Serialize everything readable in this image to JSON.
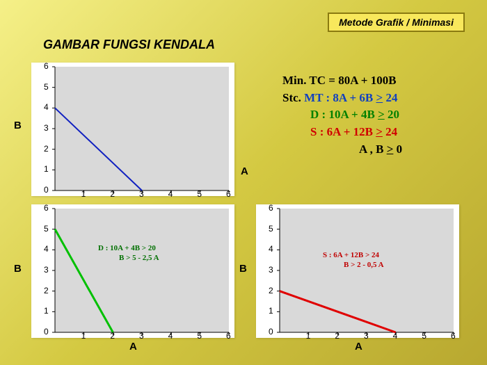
{
  "banner": "Metode Grafik / Minimasi",
  "title": "GAMBAR FUNGSI  KENDALA",
  "formula": {
    "l1": "Min. TC =  80A  +  100B",
    "l2a": "Stc. ",
    "l2b": "MT :  8A  +  6B   ",
    "l2c": ">",
    "l2d": "  24",
    "l3a": "D   :  10A  +  4B  ",
    "l3b": ">",
    "l3c": " 20",
    "l4a": "S   :  6A  +  12B  ",
    "l4b": ">",
    "l4c": " 24",
    "l5a": "A , B   ",
    "l5b": ">",
    "l5c": "   0"
  },
  "chart1": {
    "line_color": "#1020c0",
    "stroke": 2,
    "bg": "#d9d9d9",
    "xlim": [
      0,
      6
    ],
    "ylim": [
      0,
      6
    ],
    "points": [
      [
        0,
        4
      ],
      [
        3,
        0
      ]
    ],
    "xticks": [
      1,
      2,
      3,
      4,
      5,
      6
    ],
    "yticks": [
      0,
      1,
      2,
      3,
      4,
      5,
      6
    ],
    "xlabel": "A",
    "ylabel": "B"
  },
  "chart2": {
    "line_color": "#00c000",
    "stroke": 3,
    "bg": "#d9d9d9",
    "xlim": [
      0,
      6
    ],
    "ylim": [
      0,
      6
    ],
    "points": [
      [
        0,
        5
      ],
      [
        2,
        0
      ]
    ],
    "xticks": [
      1,
      2,
      3,
      4,
      5,
      6
    ],
    "yticks": [
      0,
      1,
      2,
      3,
      4,
      5,
      6
    ],
    "xlabel": "A",
    "ylabel": "B",
    "annot": {
      "l1": "D :  10A  +  4B   > 20",
      "l2": "B  >   5  -  2,5 A",
      "color": "#007000"
    }
  },
  "chart3": {
    "line_color": "#e00000",
    "stroke": 3,
    "bg": "#d9d9d9",
    "xlim": [
      0,
      6
    ],
    "ylim": [
      0,
      6
    ],
    "points": [
      [
        0,
        2
      ],
      [
        4,
        0
      ]
    ],
    "xticks": [
      1,
      2,
      3,
      4,
      5,
      6
    ],
    "yticks": [
      0,
      1,
      2,
      3,
      4,
      5,
      6
    ],
    "xlabel": "A",
    "ylabel": "B",
    "annot": {
      "l1": "S  :  6A  +  12B   > 24",
      "l2": "B  >   2  -  0,5 A",
      "color": "#c00000"
    }
  }
}
